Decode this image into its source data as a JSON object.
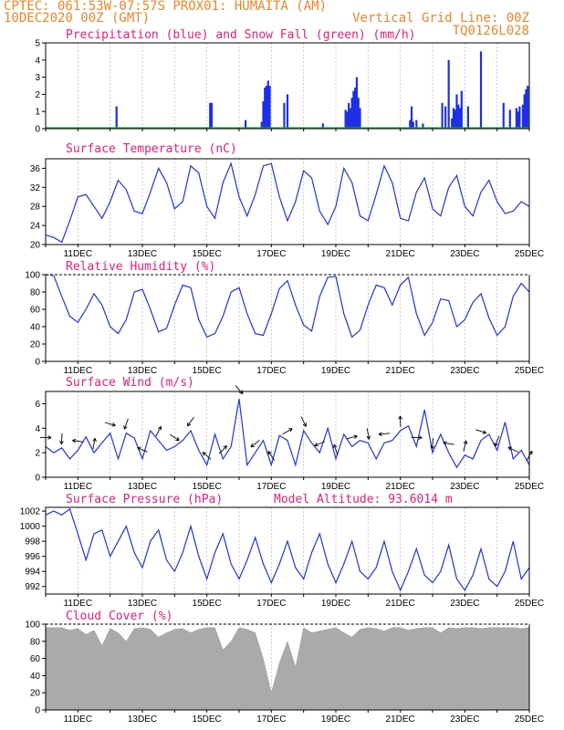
{
  "header": {
    "line1_left": "CPTEC:   061:53W-07:57S   PROX01: HUMAITA (AM)",
    "line2_left": "10DEC2020 00Z (GMT)",
    "line2_right": "Vertical Grid Line: 00Z",
    "line3_right": "TQ0126L028"
  },
  "colors": {
    "header": "#e8862a",
    "title": "#e0207a",
    "line": "#2233dd",
    "precip": "#1f2fe6",
    "snow": "#1fae2f",
    "cloud": "#aaaaaa",
    "grid": "#bbbbbb"
  },
  "x_ticks": [
    "11DEC",
    "13DEC",
    "15DEC",
    "17DEC",
    "19DEC",
    "21DEC",
    "23DEC",
    "25DEC"
  ],
  "chart_data": [
    {
      "type": "bar",
      "title": "Precipitation (blue) and Snow Fall (green) (mm/h)",
      "x_range_days": [
        10.0,
        25.0
      ],
      "ylim": [
        0,
        5
      ],
      "yticks": [
        0,
        1,
        2,
        3,
        4,
        5
      ],
      "series": [
        {
          "name": "Precipitation",
          "x": [
            12.2,
            15.1,
            15.15,
            16.2,
            16.7,
            16.75,
            16.8,
            16.85,
            16.9,
            16.95,
            17.4,
            17.5,
            18.6,
            19.3,
            19.35,
            19.4,
            19.45,
            19.5,
            19.55,
            19.6,
            19.65,
            19.7,
            19.75,
            21.3,
            21.35,
            21.4,
            21.5,
            21.7,
            22.3,
            22.4,
            22.5,
            22.6,
            22.65,
            22.7,
            22.75,
            22.8,
            22.85,
            22.9,
            23.1,
            23.5,
            24.2,
            24.4,
            24.6,
            24.65,
            24.7,
            24.8,
            24.85,
            24.9,
            24.95
          ],
          "values": [
            1.3,
            1.5,
            1.5,
            0.5,
            0.4,
            1.6,
            2.4,
            2.5,
            2.8,
            2.5,
            1.5,
            2.0,
            0.3,
            1.1,
            1.0,
            1.5,
            1.2,
            1.8,
            2.2,
            2.4,
            3.0,
            1.8,
            1.2,
            0.5,
            1.3,
            0.4,
            0.5,
            0.3,
            1.5,
            1.3,
            4.0,
            0.6,
            1.2,
            1.1,
            2.0,
            1.4,
            1.2,
            2.2,
            1.3,
            4.5,
            1.5,
            1.1,
            1.2,
            1.0,
            1.3,
            1.4,
            2.0,
            2.3,
            2.5
          ]
        },
        {
          "name": "Snow Fall",
          "values": [
            0,
            0
          ]
        }
      ]
    },
    {
      "type": "line",
      "title": "Surface Temperature (nC)",
      "x_range_days": [
        10.0,
        25.0
      ],
      "ylim": [
        20,
        38
      ],
      "yticks": [
        20,
        24,
        28,
        32,
        36
      ],
      "x": [
        10.0,
        10.25,
        10.5,
        10.75,
        11.0,
        11.25,
        11.5,
        11.75,
        12.0,
        12.25,
        12.5,
        12.75,
        13.0,
        13.25,
        13.5,
        13.75,
        14.0,
        14.25,
        14.5,
        14.75,
        15.0,
        15.25,
        15.5,
        15.75,
        16.0,
        16.25,
        16.5,
        16.75,
        17.0,
        17.25,
        17.5,
        17.75,
        18.0,
        18.25,
        18.5,
        18.75,
        19.0,
        19.25,
        19.5,
        19.75,
        20.0,
        20.25,
        20.5,
        20.75,
        21.0,
        21.25,
        21.5,
        21.75,
        22.0,
        22.25,
        22.5,
        22.75,
        23.0,
        23.25,
        23.5,
        23.75,
        24.0,
        24.25,
        24.5,
        24.75,
        25.0
      ],
      "values": [
        22,
        21.5,
        20.5,
        25,
        30,
        30.5,
        28,
        25.5,
        29,
        33.5,
        31.5,
        27,
        26.5,
        31,
        36,
        33,
        27.5,
        29,
        36.5,
        35,
        28,
        25.5,
        33,
        37,
        30,
        26,
        30.5,
        36.5,
        37,
        30,
        25,
        29,
        35.5,
        34,
        27,
        24.2,
        28,
        36,
        33,
        26,
        25,
        30.5,
        36.5,
        33,
        25.5,
        25,
        31,
        34,
        27.5,
        26,
        32,
        34.5,
        28,
        26,
        31,
        33.5,
        29,
        26.5,
        27,
        29,
        28
      ]
    },
    {
      "type": "line",
      "title": "Relative Humidity (%)",
      "x_range_days": [
        10.0,
        25.0
      ],
      "ylim": [
        0,
        100
      ],
      "yticks": [
        0,
        20,
        40,
        60,
        80,
        100
      ],
      "x": [
        10.0,
        10.25,
        10.5,
        10.75,
        11.0,
        11.25,
        11.5,
        11.75,
        12.0,
        12.25,
        12.5,
        12.75,
        13.0,
        13.25,
        13.5,
        13.75,
        14.0,
        14.25,
        14.5,
        14.75,
        15.0,
        15.25,
        15.5,
        15.75,
        16.0,
        16.25,
        16.5,
        16.75,
        17.0,
        17.25,
        17.5,
        17.75,
        18.0,
        18.25,
        18.5,
        18.75,
        19.0,
        19.25,
        19.5,
        19.75,
        20.0,
        20.25,
        20.5,
        20.75,
        21.0,
        21.25,
        21.5,
        21.75,
        22.0,
        22.25,
        22.5,
        22.75,
        23.0,
        23.25,
        23.5,
        23.75,
        24.0,
        24.25,
        24.5,
        24.75,
        25.0
      ],
      "values": [
        100,
        99,
        75,
        52,
        45,
        60,
        78,
        65,
        40,
        32,
        48,
        80,
        83,
        60,
        34,
        38,
        65,
        88,
        85,
        48,
        28,
        32,
        52,
        80,
        85,
        55,
        32,
        30,
        55,
        84,
        93,
        65,
        42,
        35,
        75,
        97,
        98,
        55,
        28,
        36,
        65,
        88,
        85,
        65,
        88,
        97,
        55,
        30,
        45,
        72,
        70,
        40,
        48,
        68,
        78,
        50,
        30,
        40,
        75,
        90,
        80
      ]
    },
    {
      "type": "line",
      "title": "Surface Wind (m/s)",
      "x_range_days": [
        10.0,
        25.0
      ],
      "ylim": [
        0,
        7
      ],
      "yticks": [
        0,
        2,
        4,
        6
      ],
      "x": [
        10.0,
        10.25,
        10.5,
        10.75,
        11.0,
        11.25,
        11.5,
        11.75,
        12.0,
        12.25,
        12.5,
        12.75,
        13.0,
        13.25,
        13.5,
        13.75,
        14.0,
        14.25,
        14.5,
        14.75,
        15.0,
        15.25,
        15.5,
        15.75,
        16.0,
        16.25,
        16.5,
        16.75,
        17.0,
        17.25,
        17.5,
        17.75,
        18.0,
        18.25,
        18.5,
        18.75,
        19.0,
        19.25,
        19.5,
        19.75,
        20.0,
        20.25,
        20.5,
        20.75,
        21.0,
        21.25,
        21.5,
        21.75,
        22.0,
        22.25,
        22.5,
        22.75,
        23.0,
        23.25,
        23.5,
        23.75,
        24.0,
        24.25,
        24.5,
        24.75,
        25.0
      ],
      "values": [
        2.5,
        2.0,
        2.4,
        1.5,
        2.2,
        3.3,
        2.0,
        2.8,
        3.6,
        1.5,
        3.6,
        3.2,
        1.5,
        3.8,
        3.0,
        2.2,
        2.5,
        3.0,
        3.8,
        2.2,
        1.0,
        3.5,
        1.5,
        2.5,
        6.4,
        1.0,
        2.0,
        3.0,
        1.0,
        3.4,
        3.0,
        1.0,
        3.8,
        2.8,
        2.0,
        4.0,
        1.5,
        3.5,
        2.5,
        3.0,
        2.8,
        1.5,
        2.8,
        3.0,
        3.8,
        4.2,
        2.5,
        5.5,
        2.0,
        3.5,
        2.0,
        0.8,
        1.8,
        1.5,
        3.0,
        3.5,
        2.2,
        4.5,
        1.5,
        2.2,
        1.0
      ]
    },
    {
      "type": "line",
      "title": "Surface Pressure (hPa)",
      "annotation": "Model Altitude: 93.6014 m",
      "x_range_days": [
        10.0,
        25.0
      ],
      "ylim": [
        991,
        1002.5
      ],
      "yticks": [
        992,
        994,
        996,
        998,
        1000,
        1002
      ],
      "x": [
        10.0,
        10.25,
        10.5,
        10.75,
        11.0,
        11.25,
        11.5,
        11.75,
        12.0,
        12.25,
        12.5,
        12.75,
        13.0,
        13.25,
        13.5,
        13.75,
        14.0,
        14.25,
        14.5,
        14.75,
        15.0,
        15.25,
        15.5,
        15.75,
        16.0,
        16.25,
        16.5,
        16.75,
        17.0,
        17.25,
        17.5,
        17.75,
        18.0,
        18.25,
        18.5,
        18.75,
        19.0,
        19.25,
        19.5,
        19.75,
        20.0,
        20.25,
        20.5,
        20.75,
        21.0,
        21.25,
        21.5,
        21.75,
        22.0,
        22.25,
        22.5,
        22.75,
        23.0,
        23.25,
        23.5,
        23.75,
        24.0,
        24.25,
        24.5,
        24.75,
        25.0
      ],
      "values": [
        1001.5,
        1002,
        1001.5,
        1002.3,
        999,
        995.5,
        999,
        999.5,
        996,
        998,
        1000,
        996.5,
        994.5,
        998,
        999.5,
        995.5,
        994,
        996.5,
        1000,
        996,
        993,
        996.5,
        999,
        995,
        993,
        995.5,
        998.5,
        995,
        992.5,
        995,
        998,
        994.5,
        993,
        996.5,
        999,
        995,
        992.5,
        995,
        998,
        994,
        993,
        994.5,
        998,
        994,
        991.5,
        994,
        997,
        993.5,
        992.5,
        994,
        997.5,
        993,
        991.5,
        993.5,
        997,
        993,
        992,
        994,
        998,
        993,
        994.5
      ]
    },
    {
      "type": "area",
      "title": "Cloud Cover (%)",
      "x_range_days": [
        10.0,
        25.0
      ],
      "ylim": [
        0,
        100
      ],
      "yticks": [
        0,
        20,
        40,
        60,
        80,
        100
      ],
      "x": [
        10.0,
        10.25,
        10.5,
        10.75,
        11.0,
        11.25,
        11.5,
        11.75,
        12.0,
        12.25,
        12.5,
        12.75,
        13.0,
        13.25,
        13.5,
        13.75,
        14.0,
        14.25,
        14.5,
        14.75,
        15.0,
        15.25,
        15.5,
        15.75,
        16.0,
        16.25,
        16.5,
        16.75,
        17.0,
        17.25,
        17.5,
        17.75,
        18.0,
        18.25,
        18.5,
        18.75,
        19.0,
        19.25,
        19.5,
        19.75,
        20.0,
        20.25,
        20.5,
        20.75,
        21.0,
        21.25,
        21.5,
        21.75,
        22.0,
        22.25,
        22.5,
        22.75,
        23.0,
        23.25,
        23.5,
        23.75,
        24.0,
        24.25,
        24.5,
        24.75,
        25.0
      ],
      "values": [
        96,
        96,
        96,
        93,
        95,
        88,
        93,
        75,
        95,
        90,
        80,
        95,
        96,
        94,
        85,
        90,
        94,
        95,
        90,
        94,
        96,
        96,
        70,
        80,
        96,
        94,
        90,
        60,
        20,
        55,
        80,
        50,
        96,
        90,
        92,
        94,
        96,
        90,
        85,
        94,
        96,
        95,
        92,
        96,
        96,
        93,
        95,
        96,
        96,
        90,
        96,
        95,
        96,
        96,
        95,
        96,
        96,
        96,
        96,
        95,
        96
      ]
    }
  ]
}
